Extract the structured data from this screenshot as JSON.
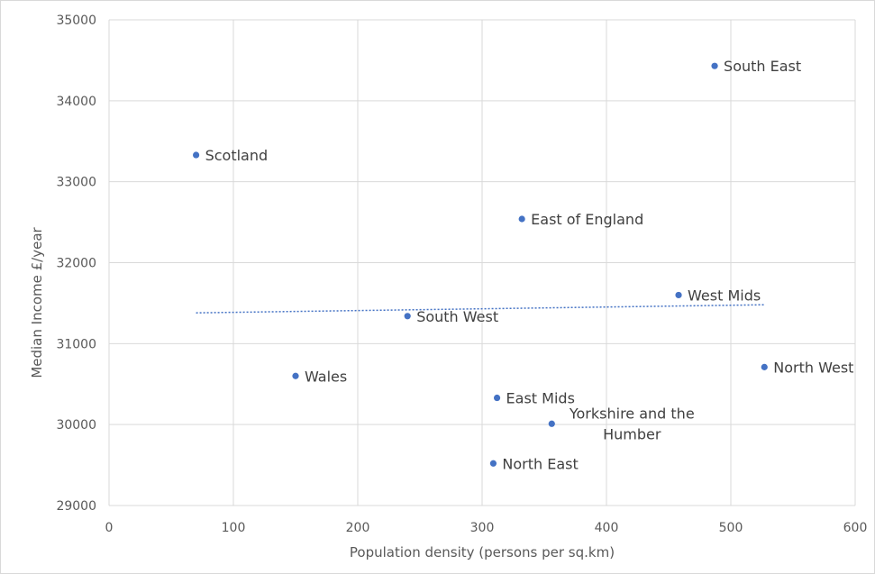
{
  "chart_data": {
    "type": "scatter",
    "title": "",
    "xlabel": "Population density (persons per sq.km)",
    "ylabel": "Median Income £/year",
    "xlim": [
      0,
      600
    ],
    "ylim": [
      29000,
      35000
    ],
    "xticks": [
      0,
      100,
      200,
      300,
      400,
      500,
      600
    ],
    "yticks": [
      29000,
      30000,
      31000,
      32000,
      33000,
      34000,
      35000
    ],
    "xtick_labels": [
      "0",
      "100",
      "200",
      "300",
      "400",
      "500",
      "600"
    ],
    "ytick_labels": [
      "29000",
      "30000",
      "31000",
      "32000",
      "33000",
      "34000",
      "35000"
    ],
    "grid": true,
    "legend": "none",
    "marker_color": "#4472c4",
    "trendline": {
      "type": "linear",
      "x": [
        70,
        527
      ],
      "y": [
        31380,
        31480
      ]
    },
    "points": [
      {
        "label": "Scotland",
        "x": 70,
        "y": 33330
      },
      {
        "label": "Wales",
        "x": 150,
        "y": 30600
      },
      {
        "label": "South West",
        "x": 240,
        "y": 31340
      },
      {
        "label": "North East",
        "x": 309,
        "y": 29520
      },
      {
        "label": "East Mids",
        "x": 312,
        "y": 30330
      },
      {
        "label": "East of England",
        "x": 332,
        "y": 32540
      },
      {
        "label": "Yorkshire and the Humber",
        "x": 356,
        "y": 30010
      },
      {
        "label": "West Mids",
        "x": 458,
        "y": 31600
      },
      {
        "label": "South East",
        "x": 487,
        "y": 34430
      },
      {
        "label": "North West",
        "x": 527,
        "y": 30710
      }
    ]
  }
}
